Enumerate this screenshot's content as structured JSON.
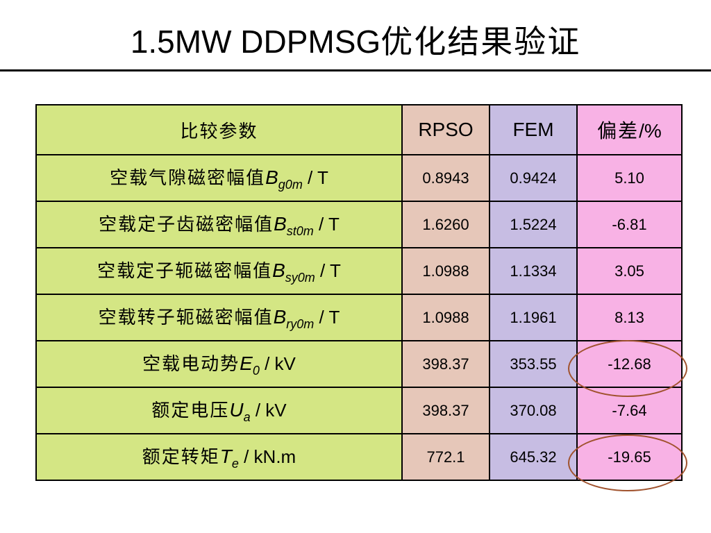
{
  "title": {
    "prefix": "1.5MW DDPMSG",
    "cjk": "优化结果验证"
  },
  "table": {
    "header": {
      "param": "比较参数",
      "rpso": "RPSO",
      "fem": "FEM",
      "dev_cjk": "偏差",
      "dev_unit": "/%"
    },
    "rows": [
      {
        "label": "空载气隙磁密幅值",
        "sym": "B",
        "sub": "g0m",
        "unit": " / T",
        "rpso": "0.8943",
        "fem": "0.9424",
        "dev": "5.10"
      },
      {
        "label": "空载定子齿磁密幅值",
        "sym": "B",
        "sub": "st0m",
        "unit": " / T",
        "rpso": "1.6260",
        "fem": "1.5224",
        "dev": "-6.81"
      },
      {
        "label": "空载定子轭磁密幅值",
        "sym": "B",
        "sub": "sy0m",
        "unit": " / T",
        "rpso": "1.0988",
        "fem": "1.1334",
        "dev": "3.05"
      },
      {
        "label": "空载转子轭磁密幅值",
        "sym": "B",
        "sub": "ry0m",
        "unit": " / T",
        "rpso": "1.0988",
        "fem": "1.1961",
        "dev": "8.13"
      },
      {
        "label": "空载电动势",
        "sym": "E",
        "sub": "0",
        "unit": " / kV",
        "rpso": "398.37",
        "fem": "353.55",
        "dev": "-12.68"
      },
      {
        "label": "额定电压",
        "sym": "U",
        "sub": "a",
        "unit": " / kV",
        "rpso": "398.37",
        "fem": "370.08",
        "dev": "-7.64"
      },
      {
        "label": "额定转矩",
        "sym": "T",
        "sub": "e",
        "unit": " / kN.m",
        "rpso": "772.1",
        "fem": "645.32",
        "dev": "-19.65"
      }
    ]
  },
  "colors": {
    "param_bg": "#d4e684",
    "rpso_bg": "#e6c7b9",
    "fem_bg": "#c7bde3",
    "dev_bg": "#f8b2e5",
    "highlight_circle": "#a0522d"
  }
}
